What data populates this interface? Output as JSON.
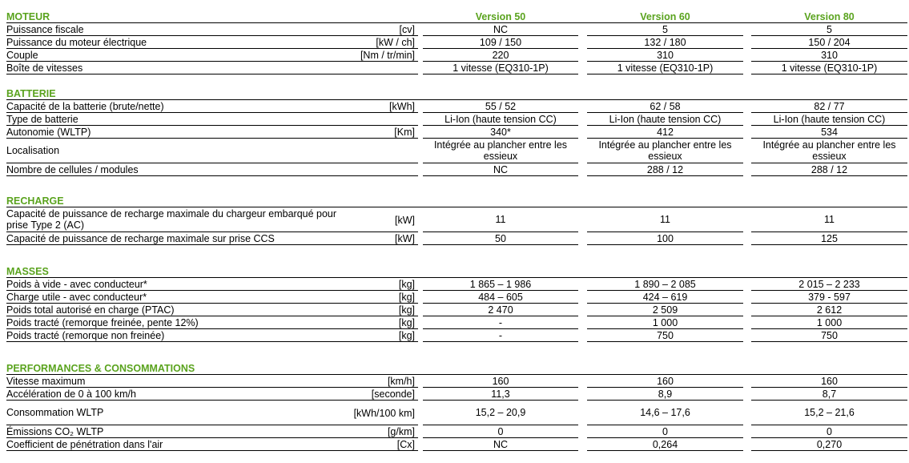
{
  "sections": [
    {
      "title": "MOTEUR",
      "columns": [
        "Version 50",
        "Version 60",
        "Version 80"
      ],
      "rows": [
        {
          "label": "Puissance fiscale",
          "unit": "[cv]",
          "values": [
            "NC",
            "5",
            "5"
          ]
        },
        {
          "label": "Puissance du moteur électrique",
          "unit": "[kW / ch]",
          "values": [
            "109 / 150",
            "132 / 180",
            "150 / 204"
          ]
        },
        {
          "label": "Couple",
          "unit": "[Nm / tr/min]",
          "values": [
            "220",
            "310",
            "310"
          ]
        },
        {
          "label": "Boîte de vitesses",
          "values": [
            "1 vitesse (EQ310-1P)",
            "1 vitesse (EQ310-1P)",
            "1 vitesse (EQ310-1P)"
          ]
        }
      ]
    },
    {
      "title": "BATTERIE",
      "rows": [
        {
          "label": "Capacité de la batterie (brute/nette)",
          "unit": "[kWh]",
          "values": [
            "55 / 52",
            "62 / 58",
            "82 / 77"
          ]
        },
        {
          "label": "Type de batterie",
          "values": [
            "Li-Ion (haute tension CC)",
            "Li-Ion (haute tension CC)",
            "Li-Ion (haute tension CC)"
          ]
        },
        {
          "label": "Autonomie (WLTP)",
          "unit": "[Km]",
          "values": [
            "340*",
            "412",
            "534"
          ]
        },
        {
          "label": "Localisation",
          "values": [
            "Intégrée au plancher entre les essieux",
            "Intégrée au plancher entre les essieux",
            "Intégrée au plancher entre les essieux"
          ]
        },
        {
          "label": "Nombre de cellules / modules",
          "values": [
            "NC",
            "288 / 12",
            "288 / 12"
          ]
        }
      ]
    },
    {
      "title": "RECHARGE",
      "rows": [
        {
          "label": "Capacité de puissance de recharge maximale du chargeur embarqué pour prise Type 2 (AC)",
          "unit": "[kW]",
          "values": [
            "11",
            "11",
            "11"
          ]
        },
        {
          "label": "Capacité de puissance de recharge maximale sur prise CCS",
          "unit": "[kW]",
          "values": [
            "50",
            "100",
            "125"
          ]
        }
      ]
    },
    {
      "title": "MASSES",
      "rows": [
        {
          "label": "Poids à vide - avec conducteur*",
          "unit": "[kg]",
          "values": [
            "1 865 – 1 986",
            "1 890 – 2 085",
            "2 015 – 2 233"
          ]
        },
        {
          "label": "Charge utile - avec conducteur*",
          "unit": "[kg]",
          "values": [
            "484 – 605",
            "424 – 619",
            "379 - 597"
          ]
        },
        {
          "label": "Poids total autorisé en charge (PTAC)",
          "unit": "[kg]",
          "values": [
            "2 470",
            "2 509",
            "2 612"
          ]
        },
        {
          "label": "Poids tracté (remorque freinée, pente 12%)",
          "unit": "[kg]",
          "values": [
            "-",
            "1 000",
            "1 000"
          ]
        },
        {
          "label": "Poids tracté (remorque non freinée)",
          "unit": "[kg]",
          "values": [
            "-",
            "750",
            "750"
          ]
        }
      ]
    },
    {
      "title": "PERFORMANCES & CONSOMMATIONS",
      "rows": [
        {
          "label": "Vitesse maximum",
          "unit": "[km/h]",
          "values": [
            "160",
            "160",
            "160"
          ]
        },
        {
          "label": "Accélération de 0 à 100 km/h",
          "unit": "[seconde]",
          "values": [
            "11,3",
            "8,9",
            "8,7"
          ]
        },
        {
          "label": "Consommation WLTP",
          "unit": "[kWh/100 km]",
          "values": [
            "15,2 – 20,9",
            "14,6 – 17,6",
            "15,2 – 21,6"
          ]
        },
        {
          "label": "Émissions CO₂ WLTP",
          "unit": "[g/km]",
          "values": [
            "0",
            "0",
            "0"
          ]
        },
        {
          "label": "Coefficient de pénétration dans l'air",
          "unit": "[Cx]",
          "values": [
            "NC",
            "0,264",
            "0,270"
          ]
        }
      ]
    }
  ]
}
